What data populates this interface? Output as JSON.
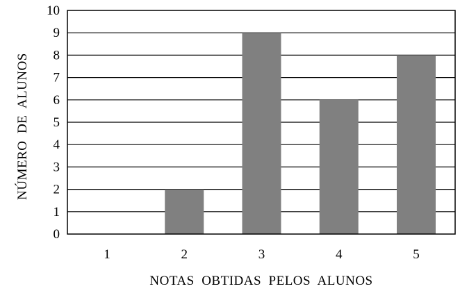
{
  "chart_data": {
    "type": "bar",
    "categories": [
      "1",
      "2",
      "3",
      "4",
      "5"
    ],
    "values": [
      0,
      2,
      9,
      6,
      8
    ],
    "xlabel": "NOTAS  OBTIDAS  PELOS  ALUNOS",
    "ylabel": "NÚMERO  DE  ALUNOS",
    "ylim": [
      0,
      10
    ],
    "yticks": [
      0,
      1,
      2,
      3,
      4,
      5,
      6,
      7,
      8,
      9,
      10
    ],
    "grid": true,
    "bar_color": "#808080"
  }
}
